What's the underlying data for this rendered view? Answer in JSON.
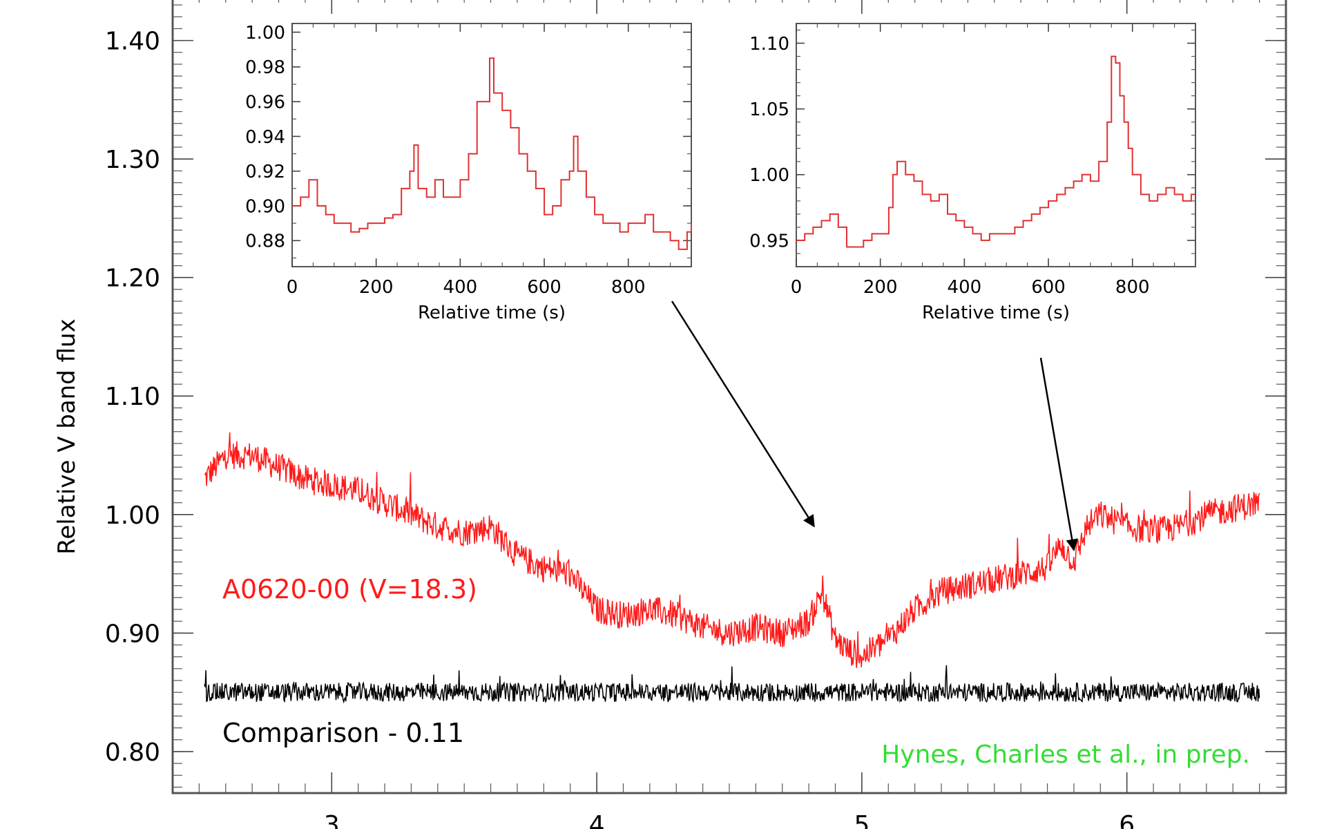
{
  "chart_data": [
    {
      "type": "line",
      "title": "",
      "xlabel": "",
      "ylabel": "Relative V band flux",
      "xlim": [
        2.4,
        6.6
      ],
      "ylim": [
        0.765,
        1.44
      ],
      "xticks": [
        3,
        4,
        5,
        6
      ],
      "xticklabels": [
        "3",
        "4",
        "5",
        "6"
      ],
      "yticks": [
        0.8,
        0.9,
        1.0,
        1.1,
        1.2,
        1.3,
        1.4
      ],
      "yticklabels": [
        "0.80",
        "0.90",
        "1.00",
        "1.10",
        "1.20",
        "1.30",
        "1.40"
      ],
      "grid": false,
      "series": [
        {
          "name": "A0620-00 (V=18.3)",
          "color": "#ff1a1a",
          "noise": 0.012,
          "x": [
            2.52,
            2.6,
            2.7,
            2.8,
            2.9,
            3.0,
            3.1,
            3.2,
            3.3,
            3.4,
            3.5,
            3.6,
            3.7,
            3.8,
            3.9,
            4.0,
            4.1,
            4.2,
            4.3,
            4.4,
            4.5,
            4.6,
            4.7,
            4.8,
            4.85,
            4.9,
            4.95,
            5.0,
            5.1,
            5.2,
            5.3,
            5.4,
            5.5,
            5.6,
            5.7,
            5.75,
            5.8,
            5.85,
            5.9,
            6.0,
            6.1,
            6.2,
            6.3,
            6.4,
            6.5
          ],
          "y": [
            1.03,
            1.05,
            1.05,
            1.04,
            1.03,
            1.025,
            1.02,
            1.01,
            1.0,
            0.99,
            0.985,
            0.99,
            0.965,
            0.955,
            0.95,
            0.92,
            0.915,
            0.92,
            0.915,
            0.905,
            0.9,
            0.905,
            0.9,
            0.91,
            0.935,
            0.895,
            0.885,
            0.88,
            0.895,
            0.92,
            0.935,
            0.94,
            0.945,
            0.95,
            0.955,
            0.975,
            0.96,
            0.99,
            1.0,
            0.99,
            0.985,
            0.99,
            1.0,
            1.005,
            1.01
          ]
        },
        {
          "name": "Comparison - 0.11",
          "color": "#000000",
          "noise": 0.008,
          "x": [
            2.52,
            3.0,
            3.5,
            4.0,
            4.5,
            5.0,
            5.5,
            6.0,
            6.5
          ],
          "y": [
            0.85,
            0.85,
            0.85,
            0.85,
            0.85,
            0.85,
            0.85,
            0.85,
            0.85
          ]
        }
      ],
      "annotations": [
        {
          "text": "A0620-00 (V=18.3)",
          "color": "#ff1a1a"
        },
        {
          "text": "Comparison - 0.11",
          "color": "#000000"
        },
        {
          "text": "Hynes, Charles et al., in prep.",
          "color": "#33dd33"
        }
      ],
      "arrows": [
        {
          "from_inset": 1,
          "to_x": 4.82,
          "to_y": 0.99
        },
        {
          "from_inset": 2,
          "to_x": 5.8,
          "to_y": 0.97
        }
      ]
    },
    {
      "type": "line",
      "title": "",
      "xlabel": "Relative time (s)",
      "ylabel": "",
      "xlim": [
        0,
        950
      ],
      "ylim": [
        0.865,
        1.005
      ],
      "xticks": [
        0,
        200,
        400,
        600,
        800
      ],
      "xticklabels": [
        "0",
        "200",
        "400",
        "600",
        "800"
      ],
      "yticks": [
        0.88,
        0.9,
        0.92,
        0.94,
        0.96,
        0.98,
        1.0
      ],
      "yticklabels": [
        "0.88",
        "0.90",
        "0.92",
        "0.94",
        "0.96",
        "0.98",
        "1.00"
      ],
      "series": [
        {
          "color": "#e03030",
          "x": [
            0,
            20,
            40,
            60,
            80,
            100,
            120,
            140,
            160,
            180,
            200,
            220,
            240,
            260,
            280,
            290,
            300,
            320,
            340,
            360,
            380,
            400,
            420,
            440,
            460,
            470,
            480,
            500,
            520,
            540,
            560,
            580,
            600,
            620,
            640,
            660,
            670,
            680,
            700,
            720,
            740,
            760,
            780,
            800,
            820,
            840,
            860,
            880,
            900,
            920,
            940,
            950
          ],
          "y": [
            0.9,
            0.905,
            0.915,
            0.9,
            0.895,
            0.89,
            0.89,
            0.885,
            0.887,
            0.89,
            0.89,
            0.893,
            0.895,
            0.91,
            0.92,
            0.935,
            0.91,
            0.905,
            0.915,
            0.905,
            0.905,
            0.915,
            0.93,
            0.96,
            0.96,
            0.985,
            0.965,
            0.955,
            0.945,
            0.93,
            0.92,
            0.91,
            0.895,
            0.9,
            0.915,
            0.92,
            0.94,
            0.92,
            0.905,
            0.895,
            0.89,
            0.89,
            0.885,
            0.89,
            0.89,
            0.895,
            0.885,
            0.885,
            0.88,
            0.875,
            0.885,
            0.89
          ]
        }
      ]
    },
    {
      "type": "line",
      "title": "",
      "xlabel": "Relative time (s)",
      "ylabel": "",
      "xlim": [
        0,
        950
      ],
      "ylim": [
        0.93,
        1.115
      ],
      "xticks": [
        0,
        200,
        400,
        600,
        800
      ],
      "xticklabels": [
        "0",
        "200",
        "400",
        "600",
        "800"
      ],
      "yticks": [
        0.95,
        1.0,
        1.05,
        1.1
      ],
      "yticklabels": [
        "0.95",
        "1.00",
        "1.05",
        "1.10"
      ],
      "series": [
        {
          "color": "#e03030",
          "x": [
            0,
            20,
            40,
            60,
            80,
            100,
            120,
            140,
            160,
            180,
            200,
            220,
            230,
            240,
            260,
            280,
            300,
            320,
            340,
            360,
            380,
            400,
            420,
            440,
            460,
            480,
            500,
            520,
            540,
            560,
            580,
            600,
            620,
            640,
            660,
            680,
            700,
            720,
            740,
            750,
            760,
            770,
            780,
            790,
            800,
            820,
            840,
            860,
            880,
            900,
            920,
            940,
            950
          ],
          "y": [
            0.95,
            0.955,
            0.96,
            0.965,
            0.97,
            0.96,
            0.945,
            0.945,
            0.95,
            0.955,
            0.955,
            0.975,
            1.0,
            1.01,
            1.0,
            0.995,
            0.985,
            0.98,
            0.985,
            0.97,
            0.965,
            0.96,
            0.955,
            0.95,
            0.955,
            0.955,
            0.955,
            0.96,
            0.965,
            0.97,
            0.975,
            0.98,
            0.985,
            0.99,
            0.995,
            1.0,
            0.995,
            1.01,
            1.04,
            1.09,
            1.085,
            1.06,
            1.04,
            1.02,
            1.0,
            0.985,
            0.98,
            0.985,
            0.99,
            0.985,
            0.98,
            0.985,
            0.985
          ]
        }
      ]
    }
  ]
}
